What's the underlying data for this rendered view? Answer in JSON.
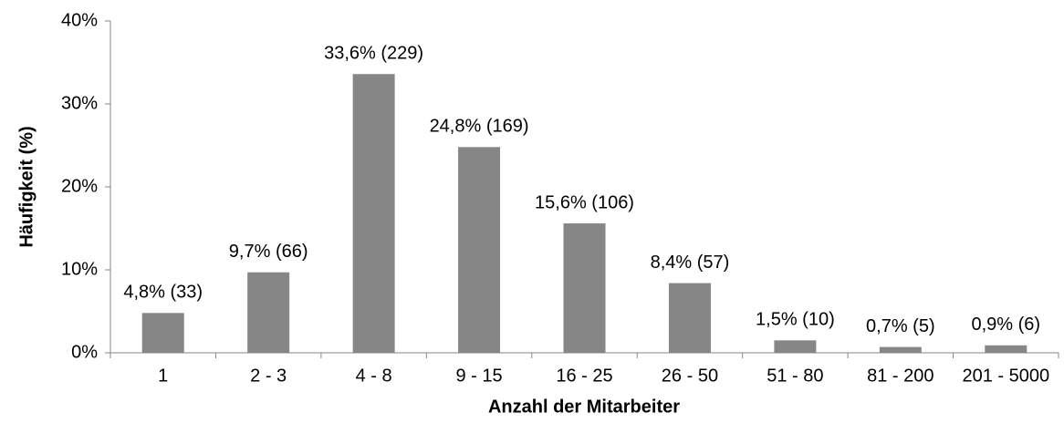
{
  "chart_data": {
    "type": "bar",
    "x_label": "Anzahl der Mitarbeiter",
    "y_label": "Häufigkeit (%)",
    "categories": [
      "1",
      "2 - 3",
      "4 - 8",
      "9 - 15",
      "16 - 25",
      "26 - 50",
      "51 - 80",
      "81 - 200",
      "201 - 5000"
    ],
    "values": [
      4.8,
      9.7,
      33.6,
      24.8,
      15.6,
      8.4,
      1.5,
      0.7,
      0.9
    ],
    "value_labels": [
      "4,8% (33)",
      "9,7% (66)",
      "33,6% (229)",
      "24,8% (169)",
      "15,6% (106)",
      "8,4% (57)",
      "1,5% (10)",
      "0,7% (5)",
      "0,9% (6)"
    ],
    "color": "#868686",
    "ylim": [
      0,
      40
    ],
    "yticks": [
      {
        "value": 0,
        "label": "0%"
      },
      {
        "value": 10,
        "label": "10%"
      },
      {
        "value": 20,
        "label": "20%"
      },
      {
        "value": 30,
        "label": "30%"
      },
      {
        "value": 40,
        "label": "40%"
      }
    ],
    "grid": false
  }
}
